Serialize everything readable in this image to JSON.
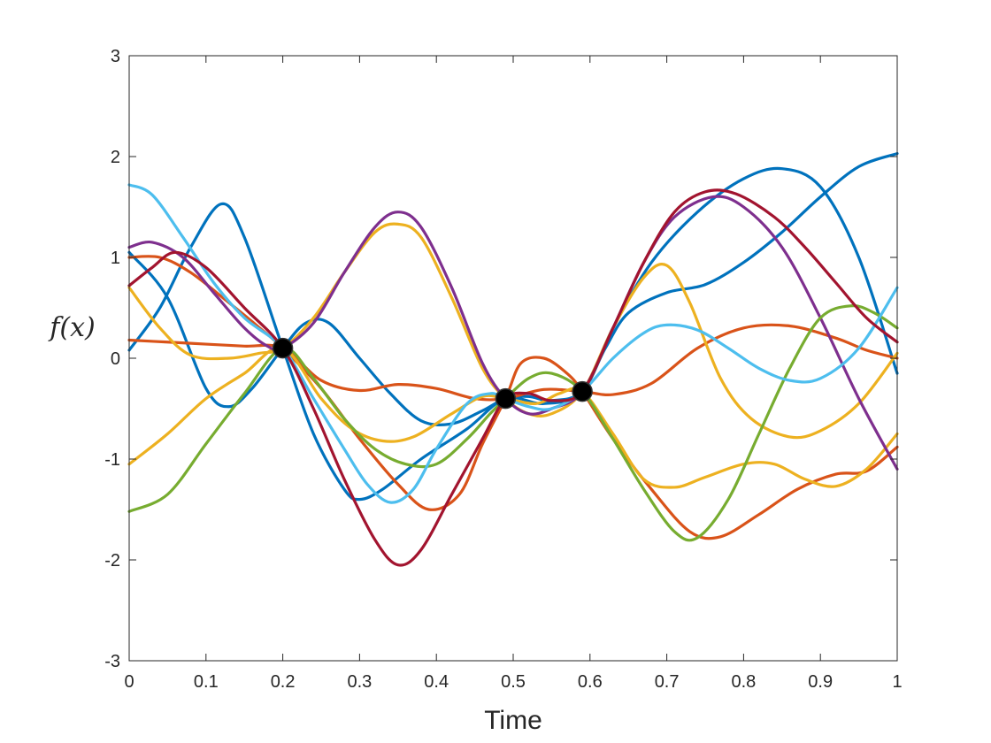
{
  "chart_data": {
    "type": "line",
    "title": "",
    "xlabel": "Time",
    "ylabel": "f(x)",
    "xlim": [
      0,
      1
    ],
    "ylim": [
      -3,
      3
    ],
    "xticks": [
      0,
      0.1,
      0.2,
      0.3,
      0.4,
      0.5,
      0.6,
      0.7,
      0.8,
      0.9,
      1
    ],
    "xtick_labels": [
      "0",
      "0.1",
      "0.2",
      "0.3",
      "0.4",
      "0.5",
      "0.6",
      "0.7",
      "0.8",
      "0.9",
      "1"
    ],
    "yticks": [
      -3,
      -2,
      -1,
      0,
      1,
      2,
      3
    ],
    "ytick_labels": [
      "-3",
      "-2",
      "-1",
      "0",
      "1",
      "2",
      "3"
    ],
    "grid": false,
    "legend": "none",
    "line_width": 3.2,
    "observations": {
      "color": "#000000",
      "points": [
        {
          "x": 0.2,
          "y": 0.1
        },
        {
          "x": 0.49,
          "y": -0.4
        },
        {
          "x": 0.59,
          "y": -0.33
        }
      ]
    },
    "series": [
      {
        "color": "#0072BD",
        "points": [
          [
            0,
            1.05
          ],
          [
            0.05,
            0.6
          ],
          [
            0.1,
            -0.3
          ],
          [
            0.13,
            -0.48
          ],
          [
            0.16,
            -0.3
          ],
          [
            0.2,
            0.1
          ],
          [
            0.23,
            0.35
          ],
          [
            0.26,
            0.35
          ],
          [
            0.3,
            0.0
          ],
          [
            0.34,
            -0.35
          ],
          [
            0.38,
            -0.62
          ],
          [
            0.42,
            -0.65
          ],
          [
            0.46,
            -0.52
          ],
          [
            0.49,
            -0.4
          ],
          [
            0.52,
            -0.38
          ],
          [
            0.55,
            -0.42
          ],
          [
            0.59,
            -0.33
          ],
          [
            0.62,
            0.1
          ],
          [
            0.65,
            0.45
          ],
          [
            0.7,
            0.65
          ],
          [
            0.75,
            0.73
          ],
          [
            0.8,
            0.95
          ],
          [
            0.85,
            1.25
          ],
          [
            0.9,
            1.6
          ],
          [
            0.95,
            1.9
          ],
          [
            1,
            2.03
          ]
        ]
      },
      {
        "color": "#0072BD",
        "points": [
          [
            0,
            0.08
          ],
          [
            0.04,
            0.5
          ],
          [
            0.08,
            1.1
          ],
          [
            0.12,
            1.53
          ],
          [
            0.15,
            1.2
          ],
          [
            0.2,
            0.1
          ],
          [
            0.24,
            -0.75
          ],
          [
            0.28,
            -1.3
          ],
          [
            0.3,
            -1.4
          ],
          [
            0.33,
            -1.3
          ],
          [
            0.38,
            -1.0
          ],
          [
            0.44,
            -0.7
          ],
          [
            0.49,
            -0.4
          ],
          [
            0.54,
            -0.45
          ],
          [
            0.59,
            -0.33
          ],
          [
            0.63,
            0.3
          ],
          [
            0.68,
            0.95
          ],
          [
            0.74,
            1.45
          ],
          [
            0.8,
            1.78
          ],
          [
            0.85,
            1.88
          ],
          [
            0.9,
            1.7
          ],
          [
            0.95,
            1.0
          ],
          [
            1,
            -0.15
          ]
        ]
      },
      {
        "color": "#D95319",
        "points": [
          [
            0,
            0.18
          ],
          [
            0.05,
            0.16
          ],
          [
            0.1,
            0.14
          ],
          [
            0.15,
            0.12
          ],
          [
            0.2,
            0.1
          ],
          [
            0.25,
            -0.22
          ],
          [
            0.3,
            -0.32
          ],
          [
            0.35,
            -0.26
          ],
          [
            0.4,
            -0.3
          ],
          [
            0.45,
            -0.4
          ],
          [
            0.49,
            -0.4
          ],
          [
            0.54,
            -0.31
          ],
          [
            0.59,
            -0.33
          ],
          [
            0.63,
            -0.36
          ],
          [
            0.68,
            -0.25
          ],
          [
            0.74,
            0.1
          ],
          [
            0.8,
            0.3
          ],
          [
            0.86,
            0.32
          ],
          [
            0.92,
            0.2
          ],
          [
            0.96,
            0.08
          ],
          [
            1,
            0.0
          ]
        ]
      },
      {
        "color": "#D95319",
        "points": [
          [
            0,
            1.0
          ],
          [
            0.04,
            1.0
          ],
          [
            0.08,
            0.85
          ],
          [
            0.13,
            0.55
          ],
          [
            0.17,
            0.3
          ],
          [
            0.2,
            0.1
          ],
          [
            0.25,
            -0.3
          ],
          [
            0.3,
            -0.8
          ],
          [
            0.35,
            -1.25
          ],
          [
            0.39,
            -1.5
          ],
          [
            0.43,
            -1.35
          ],
          [
            0.46,
            -0.85
          ],
          [
            0.49,
            -0.4
          ],
          [
            0.51,
            -0.05
          ],
          [
            0.54,
            0.0
          ],
          [
            0.57,
            -0.15
          ],
          [
            0.59,
            -0.33
          ],
          [
            0.63,
            -0.8
          ],
          [
            0.68,
            -1.3
          ],
          [
            0.73,
            -1.72
          ],
          [
            0.77,
            -1.77
          ],
          [
            0.82,
            -1.55
          ],
          [
            0.87,
            -1.3
          ],
          [
            0.92,
            -1.15
          ],
          [
            0.96,
            -1.12
          ],
          [
            1,
            -0.88
          ]
        ]
      },
      {
        "color": "#EDB120",
        "points": [
          [
            0,
            0.7
          ],
          [
            0.04,
            0.3
          ],
          [
            0.08,
            0.03
          ],
          [
            0.13,
            0.0
          ],
          [
            0.17,
            0.05
          ],
          [
            0.2,
            0.1
          ],
          [
            0.24,
            0.4
          ],
          [
            0.28,
            0.85
          ],
          [
            0.32,
            1.25
          ],
          [
            0.35,
            1.33
          ],
          [
            0.38,
            1.2
          ],
          [
            0.42,
            0.6
          ],
          [
            0.46,
            -0.1
          ],
          [
            0.49,
            -0.4
          ],
          [
            0.52,
            -0.55
          ],
          [
            0.55,
            -0.55
          ],
          [
            0.59,
            -0.33
          ],
          [
            0.63,
            0.3
          ],
          [
            0.67,
            0.8
          ],
          [
            0.7,
            0.92
          ],
          [
            0.73,
            0.55
          ],
          [
            0.77,
            -0.2
          ],
          [
            0.81,
            -0.6
          ],
          [
            0.86,
            -0.78
          ],
          [
            0.9,
            -0.72
          ],
          [
            0.95,
            -0.45
          ],
          [
            1,
            0.05
          ]
        ]
      },
      {
        "color": "#EDB120",
        "points": [
          [
            0,
            -1.05
          ],
          [
            0.05,
            -0.75
          ],
          [
            0.1,
            -0.4
          ],
          [
            0.15,
            -0.15
          ],
          [
            0.2,
            0.1
          ],
          [
            0.25,
            -0.4
          ],
          [
            0.29,
            -0.7
          ],
          [
            0.33,
            -0.82
          ],
          [
            0.37,
            -0.78
          ],
          [
            0.42,
            -0.55
          ],
          [
            0.46,
            -0.38
          ],
          [
            0.49,
            -0.4
          ],
          [
            0.53,
            -0.45
          ],
          [
            0.56,
            -0.35
          ],
          [
            0.59,
            -0.33
          ],
          [
            0.63,
            -0.75
          ],
          [
            0.67,
            -1.2
          ],
          [
            0.71,
            -1.28
          ],
          [
            0.75,
            -1.18
          ],
          [
            0.8,
            -1.05
          ],
          [
            0.84,
            -1.05
          ],
          [
            0.88,
            -1.2
          ],
          [
            0.92,
            -1.27
          ],
          [
            0.96,
            -1.1
          ],
          [
            1,
            -0.75
          ]
        ]
      },
      {
        "color": "#7E2F8E",
        "points": [
          [
            0,
            1.1
          ],
          [
            0.03,
            1.15
          ],
          [
            0.07,
            1.0
          ],
          [
            0.11,
            0.65
          ],
          [
            0.15,
            0.3
          ],
          [
            0.18,
            0.12
          ],
          [
            0.2,
            0.1
          ],
          [
            0.24,
            0.35
          ],
          [
            0.28,
            0.85
          ],
          [
            0.32,
            1.3
          ],
          [
            0.35,
            1.45
          ],
          [
            0.38,
            1.3
          ],
          [
            0.42,
            0.7
          ],
          [
            0.46,
            -0.05
          ],
          [
            0.49,
            -0.4
          ],
          [
            0.52,
            -0.55
          ],
          [
            0.55,
            -0.5
          ],
          [
            0.59,
            -0.33
          ],
          [
            0.63,
            0.3
          ],
          [
            0.67,
            0.95
          ],
          [
            0.71,
            1.4
          ],
          [
            0.76,
            1.6
          ],
          [
            0.8,
            1.5
          ],
          [
            0.85,
            1.1
          ],
          [
            0.9,
            0.4
          ],
          [
            0.95,
            -0.4
          ],
          [
            1,
            -1.1
          ]
        ]
      },
      {
        "color": "#77AC30",
        "points": [
          [
            0,
            -1.52
          ],
          [
            0.05,
            -1.35
          ],
          [
            0.1,
            -0.85
          ],
          [
            0.15,
            -0.35
          ],
          [
            0.2,
            0.1
          ],
          [
            0.24,
            -0.2
          ],
          [
            0.28,
            -0.6
          ],
          [
            0.32,
            -0.9
          ],
          [
            0.36,
            -1.05
          ],
          [
            0.4,
            -1.05
          ],
          [
            0.44,
            -0.8
          ],
          [
            0.47,
            -0.55
          ],
          [
            0.49,
            -0.4
          ],
          [
            0.52,
            -0.2
          ],
          [
            0.55,
            -0.15
          ],
          [
            0.59,
            -0.33
          ],
          [
            0.63,
            -0.8
          ],
          [
            0.67,
            -1.3
          ],
          [
            0.71,
            -1.72
          ],
          [
            0.74,
            -1.78
          ],
          [
            0.78,
            -1.4
          ],
          [
            0.82,
            -0.75
          ],
          [
            0.86,
            -0.1
          ],
          [
            0.9,
            0.4
          ],
          [
            0.94,
            0.52
          ],
          [
            0.97,
            0.45
          ],
          [
            1,
            0.3
          ]
        ]
      },
      {
        "color": "#4DBEEE",
        "points": [
          [
            0,
            1.72
          ],
          [
            0.03,
            1.62
          ],
          [
            0.07,
            1.2
          ],
          [
            0.11,
            0.75
          ],
          [
            0.15,
            0.4
          ],
          [
            0.2,
            0.1
          ],
          [
            0.24,
            -0.4
          ],
          [
            0.28,
            -0.9
          ],
          [
            0.31,
            -1.25
          ],
          [
            0.34,
            -1.43
          ],
          [
            0.37,
            -1.3
          ],
          [
            0.4,
            -0.9
          ],
          [
            0.44,
            -0.45
          ],
          [
            0.47,
            -0.35
          ],
          [
            0.49,
            -0.4
          ],
          [
            0.52,
            -0.48
          ],
          [
            0.55,
            -0.5
          ],
          [
            0.59,
            -0.33
          ],
          [
            0.63,
            0.0
          ],
          [
            0.67,
            0.25
          ],
          [
            0.7,
            0.33
          ],
          [
            0.74,
            0.28
          ],
          [
            0.78,
            0.1
          ],
          [
            0.82,
            -0.1
          ],
          [
            0.86,
            -0.22
          ],
          [
            0.9,
            -0.2
          ],
          [
            0.95,
            0.1
          ],
          [
            1,
            0.7
          ]
        ]
      },
      {
        "color": "#A2142F",
        "points": [
          [
            0,
            0.72
          ],
          [
            0.03,
            0.9
          ],
          [
            0.06,
            1.05
          ],
          [
            0.1,
            0.9
          ],
          [
            0.15,
            0.5
          ],
          [
            0.2,
            0.1
          ],
          [
            0.24,
            -0.5
          ],
          [
            0.28,
            -1.2
          ],
          [
            0.32,
            -1.8
          ],
          [
            0.35,
            -2.05
          ],
          [
            0.38,
            -1.9
          ],
          [
            0.42,
            -1.35
          ],
          [
            0.46,
            -0.8
          ],
          [
            0.49,
            -0.4
          ],
          [
            0.52,
            -0.35
          ],
          [
            0.55,
            -0.42
          ],
          [
            0.59,
            -0.33
          ],
          [
            0.63,
            0.3
          ],
          [
            0.67,
            0.95
          ],
          [
            0.71,
            1.45
          ],
          [
            0.75,
            1.65
          ],
          [
            0.79,
            1.63
          ],
          [
            0.84,
            1.4
          ],
          [
            0.88,
            1.1
          ],
          [
            0.92,
            0.75
          ],
          [
            0.96,
            0.4
          ],
          [
            1,
            0.16
          ]
        ]
      }
    ]
  }
}
